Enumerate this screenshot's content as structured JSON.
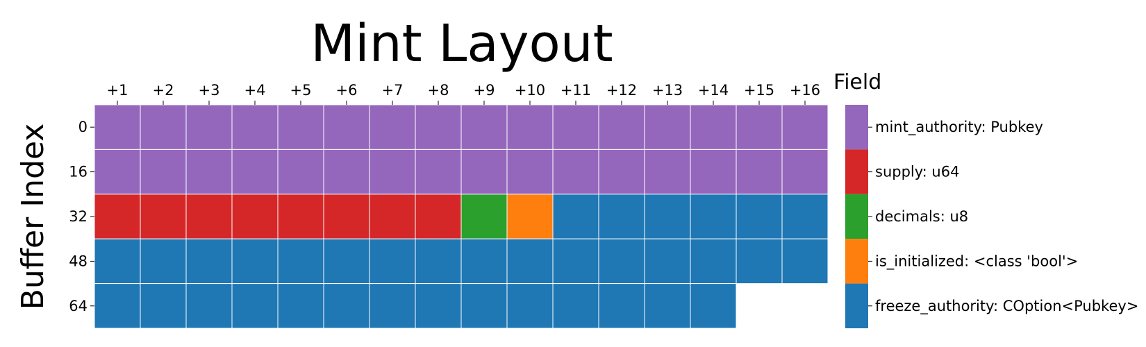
{
  "chart_data": {
    "type": "heatmap",
    "title": "Mint Layout",
    "ylabel": "Buffer Index",
    "xlabel": "",
    "x_ticks": [
      "+1",
      "+2",
      "+3",
      "+4",
      "+5",
      "+6",
      "+7",
      "+8",
      "+9",
      "+10",
      "+11",
      "+12",
      "+13",
      "+14",
      "+15",
      "+16"
    ],
    "y_ticks": [
      "0",
      "16",
      "32",
      "48",
      "64"
    ],
    "legend_title": "Field",
    "legend_placement": "right",
    "grid": true,
    "fields": [
      {
        "name": "mint_authority: Pubkey",
        "offset": 0,
        "length": 32,
        "color": "#9467bd"
      },
      {
        "name": "supply: u64",
        "offset": 32,
        "length": 8,
        "color": "#d62728"
      },
      {
        "name": "decimals: u8",
        "offset": 40,
        "length": 1,
        "color": "#2ca02c"
      },
      {
        "name": "is_initialized: <class 'bool'>",
        "offset": 41,
        "length": 1,
        "color": "#ff7f0e"
      },
      {
        "name": "freeze_authority: COption<Pubkey>",
        "offset": 42,
        "length": 36,
        "color": "#1f77b4"
      }
    ],
    "total_bytes": 78,
    "bytes_per_row": 16
  }
}
